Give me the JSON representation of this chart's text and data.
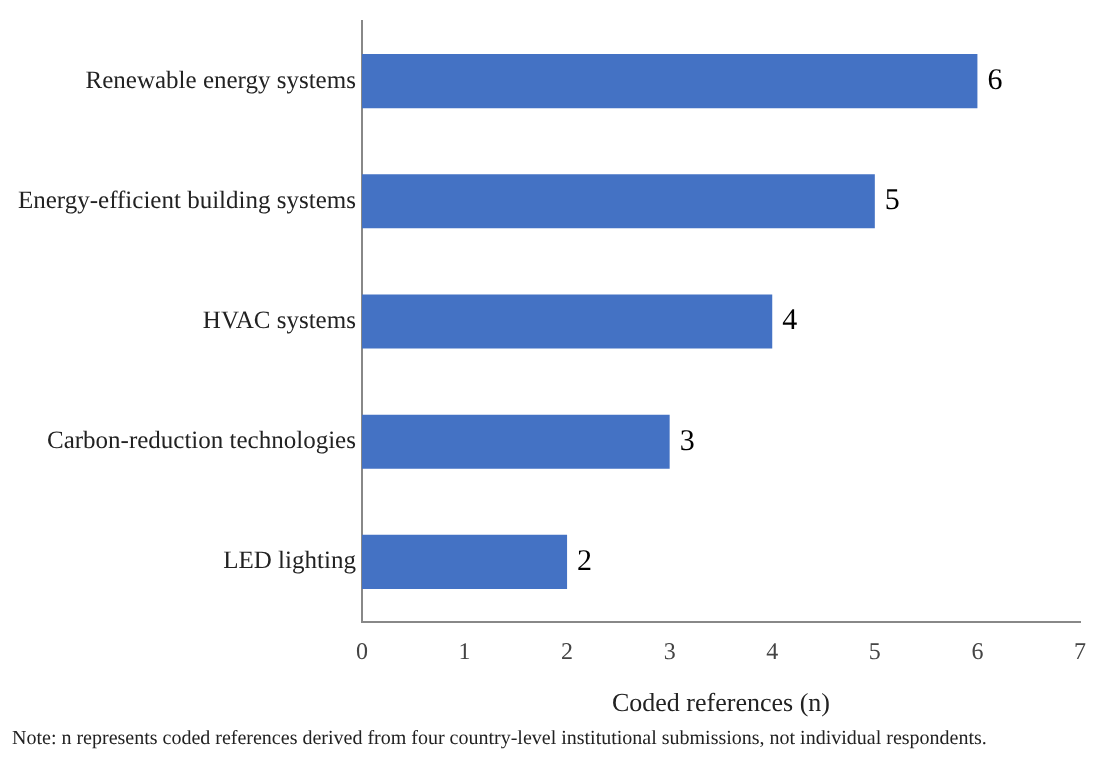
{
  "chart_data": {
    "type": "bar",
    "orientation": "horizontal",
    "xlabel": "Coded references (n)",
    "categories": [
      "Renewable energy systems",
      "Energy-efficient building systems",
      "HVAC systems",
      "Carbon-reduction technologies",
      "LED lighting"
    ],
    "values": [
      6,
      5,
      4,
      3,
      2
    ],
    "color": "#4472c4",
    "xlim": [
      0,
      7
    ],
    "xticks": [
      0,
      1,
      2,
      3,
      4,
      5,
      6,
      7
    ],
    "grid": false,
    "legend": false,
    "data_labels": true,
    "annotations": [
      "Note: n represents coded references derived from four country-level institutional submissions, not individual respondents."
    ]
  }
}
